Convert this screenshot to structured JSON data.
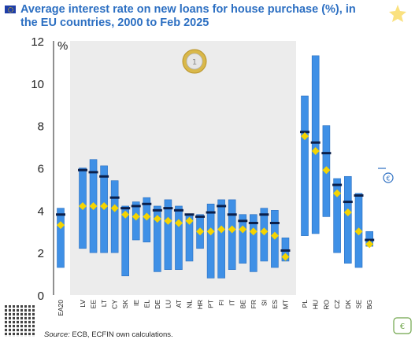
{
  "title": "Average interest rate on new loans for house purchase (%), in the EU countries, 2000 to Feb 2025",
  "source_label": "Source:",
  "source_text": " ECB, ECFIN own calculations.",
  "colors": {
    "bar": "#3f90e6",
    "bar_stroke": "#2a6fc0",
    "shade": "#ececec",
    "marker_avg": "#f5d400",
    "marker_latest": "#0b1f4a",
    "title": "#2c6fc2"
  },
  "chart_data": {
    "type": "bar",
    "title": "Average interest rate on new loans for house purchase (%), in the EU countries, 2000 to Feb 2025",
    "xlabel": "",
    "ylabel": "%",
    "ylim": [
      0,
      12
    ],
    "yticks": [
      0,
      2,
      4,
      6,
      8,
      10,
      12
    ],
    "grid": false,
    "categories": [
      "EA20",
      "LV",
      "EE",
      "LT",
      "CY",
      "SK",
      "IE",
      "EL",
      "DE",
      "LU",
      "AT",
      "NL",
      "HR",
      "PT",
      "FI",
      "IT",
      "BE",
      "FR",
      "SI",
      "ES",
      "MT",
      "PL",
      "HU",
      "RO",
      "CZ",
      "DK",
      "SE",
      "BG"
    ],
    "groups": [
      "euro-area",
      "euro",
      "euro",
      "euro",
      "euro",
      "euro",
      "euro",
      "euro",
      "euro",
      "euro",
      "euro",
      "euro",
      "euro",
      "euro",
      "euro",
      "euro",
      "euro",
      "euro",
      "euro",
      "euro",
      "euro",
      "non-euro",
      "non-euro",
      "non-euro",
      "non-euro",
      "non-euro",
      "non-euro",
      "non-euro"
    ],
    "series": [
      {
        "kind": "range",
        "min": [
          1.3,
          2.2,
          2.0,
          2.0,
          2.0,
          0.9,
          2.6,
          2.5,
          1.1,
          1.2,
          1.2,
          1.6,
          2.2,
          0.8,
          0.8,
          1.2,
          1.5,
          1.1,
          1.6,
          1.3,
          1.6,
          2.8,
          2.9,
          3.7,
          2.0,
          1.5,
          1.3,
          2.3
        ],
        "max": [
          4.1,
          6.0,
          6.4,
          6.1,
          5.4,
          4.2,
          4.4,
          4.6,
          4.2,
          4.5,
          4.2,
          3.8,
          3.8,
          4.3,
          4.5,
          4.5,
          3.8,
          3.8,
          4.1,
          4.0,
          2.7,
          9.4,
          11.3,
          8.0,
          5.5,
          5.6,
          4.8,
          3.0
        ]
      },
      {
        "kind": "average",
        "values": [
          3.3,
          4.2,
          4.2,
          4.2,
          4.1,
          3.8,
          3.7,
          3.7,
          3.6,
          3.5,
          3.4,
          3.5,
          3.0,
          3.0,
          3.1,
          3.1,
          3.1,
          3.0,
          3.0,
          2.8,
          1.8,
          7.5,
          6.8,
          5.9,
          4.8,
          3.9,
          3.0,
          2.4
        ]
      },
      {
        "kind": "latest",
        "values": [
          3.8,
          5.9,
          5.8,
          5.6,
          4.6,
          4.1,
          4.2,
          4.3,
          4.0,
          4.1,
          4.0,
          3.8,
          3.7,
          3.9,
          4.2,
          3.8,
          3.5,
          3.4,
          3.8,
          3.4,
          2.1,
          7.7,
          7.2,
          6.7,
          5.2,
          4.4,
          4.7,
          2.6
        ]
      }
    ]
  }
}
